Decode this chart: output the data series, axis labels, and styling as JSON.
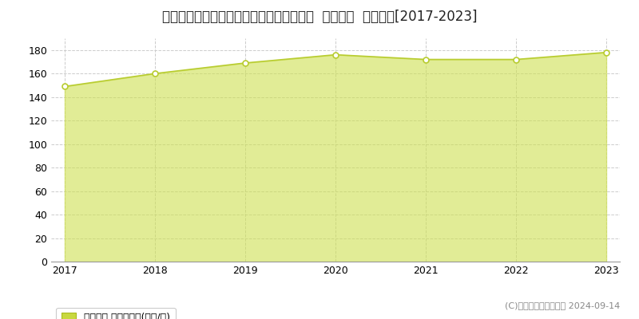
{
  "title": "兵庫県神戸市中央区熊内町７丁目４番４外  地価公示  地価推移[2017-2023]",
  "years": [
    2017,
    2018,
    2019,
    2020,
    2021,
    2022,
    2023
  ],
  "values": [
    149,
    160,
    169,
    176,
    172,
    172,
    178
  ],
  "line_color": "#b8cc30",
  "fill_color": "#cde050",
  "fill_alpha": 0.6,
  "marker_facecolor": "#ffffff",
  "marker_edgecolor": "#b8cc30",
  "marker_size": 5,
  "ylim": [
    0,
    190
  ],
  "yticks": [
    0,
    20,
    40,
    60,
    80,
    100,
    120,
    140,
    160,
    180
  ],
  "grid_color": "#cccccc",
  "grid_linestyle": "--",
  "background_color": "#ffffff",
  "plot_bg_color": "#ffffff",
  "legend_label": "地価公示 平均坪単価(万円/坪)",
  "legend_color": "#c8d840",
  "copyright_text": "(C)土地価格ドットコム 2024-09-14",
  "title_fontsize": 12,
  "tick_fontsize": 9,
  "legend_fontsize": 9,
  "copyright_fontsize": 8
}
